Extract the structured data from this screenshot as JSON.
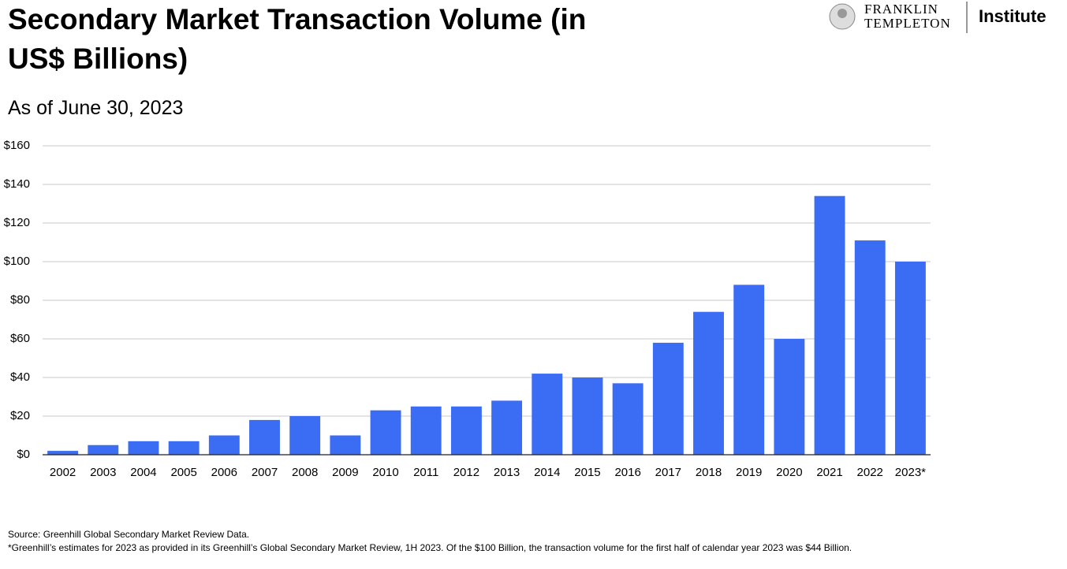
{
  "chart_data": {
    "type": "bar",
    "title": "Secondary Market Transaction Volume (in US$ Billions)",
    "subtitle": "As of June 30, 2023",
    "categories": [
      "2002",
      "2003",
      "2004",
      "2005",
      "2006",
      "2007",
      "2008",
      "2009",
      "2010",
      "2011",
      "2012",
      "2013",
      "2014",
      "2015",
      "2016",
      "2017",
      "2018",
      "2019",
      "2020",
      "2021",
      "2022",
      "2023*"
    ],
    "values": [
      2,
      5,
      7,
      7,
      10,
      18,
      20,
      10,
      23,
      25,
      25,
      28,
      42,
      40,
      37,
      58,
      74,
      88,
      60,
      134,
      111,
      100
    ],
    "color": "#3a6cf4",
    "ylim": [
      0,
      160
    ],
    "yticks": [
      {
        "value": 0,
        "label": "$0"
      },
      {
        "value": 20,
        "label": "$20"
      },
      {
        "value": 40,
        "label": "$40"
      },
      {
        "value": 60,
        "label": "$60"
      },
      {
        "value": 80,
        "label": "$80"
      },
      {
        "value": 100,
        "label": "$100"
      },
      {
        "value": 120,
        "label": "$120"
      },
      {
        "value": 140,
        "label": "$140"
      },
      {
        "value": 160,
        "label": "$160"
      }
    ],
    "grid": true,
    "source": "Source: Greenhill Global Secondary Market Review Data.",
    "note": "*Greenhill’s estimates for 2023 as provided in its Greenhill’s Global Secondary Market Review, 1H 2023. Of the $100 Billion, the transaction volume for the first half of calendar year 2023 was $44 Billion."
  },
  "logo": {
    "brand_line1": "FRANKLIN",
    "brand_line2": "TEMPLETON",
    "product": "Institute"
  }
}
